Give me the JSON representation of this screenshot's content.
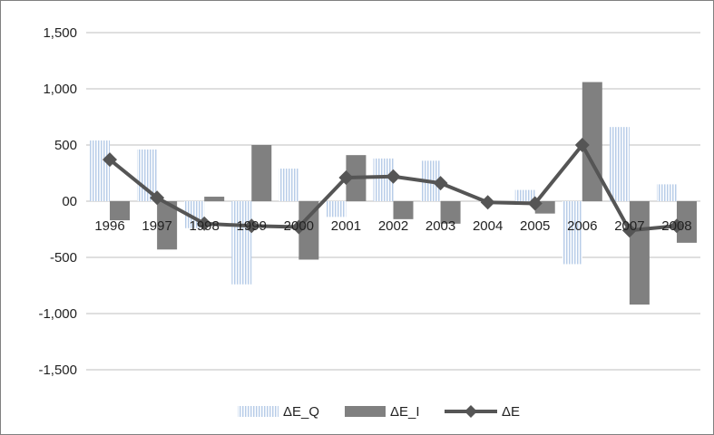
{
  "chart_data": {
    "type": "bar",
    "categories": [
      "1996",
      "1997",
      "1998",
      "1999",
      "2000",
      "2001",
      "2002",
      "2003",
      "2004",
      "2005",
      "2006",
      "2007",
      "2008"
    ],
    "series": [
      {
        "name": "ΔE_Q",
        "kind": "bar",
        "color": "#b8cde8",
        "values": [
          540,
          460,
          -240,
          -740,
          290,
          -140,
          380,
          360,
          0,
          100,
          -560,
          660,
          150
        ]
      },
      {
        "name": "ΔE_I",
        "kind": "bar",
        "color": "#808080",
        "values": [
          -170,
          -430,
          40,
          500,
          -520,
          410,
          -160,
          -200,
          0,
          -110,
          1060,
          -920,
          -370
        ]
      },
      {
        "name": "ΔE",
        "kind": "line",
        "color": "#555555",
        "values": [
          370,
          30,
          -200,
          -220,
          -230,
          210,
          220,
          160,
          -10,
          -20,
          500,
          -260,
          -220
        ]
      }
    ],
    "ylim": [
      -1500,
      1500
    ],
    "yticks": [
      1500,
      1000,
      500,
      0,
      -500,
      -1000,
      -1500
    ],
    "ytick_labels": [
      "1,500",
      "1,000",
      "500",
      "00",
      "-500",
      "-1,000",
      "-1,500"
    ],
    "grid": true,
    "legend_position": "bottom",
    "title": "",
    "xlabel": "",
    "ylabel": ""
  }
}
